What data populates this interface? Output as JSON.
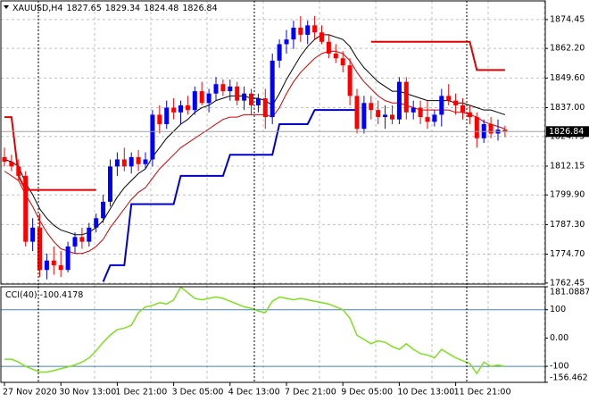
{
  "chart_data": [
    {
      "type": "candlestick",
      "symbol": "XAUUSD,H4",
      "up_color": "#0000ff",
      "down_color": "#ff0000",
      "grid": true,
      "candles": [
        [
          1816,
          1820,
          1812,
          1814
        ],
        [
          1814,
          1817,
          1810,
          1812
        ],
        [
          1812,
          1815,
          1806,
          1808
        ],
        [
          1808,
          1810,
          1778,
          1780
        ],
        [
          1780,
          1790,
          1776,
          1786
        ],
        [
          1786,
          1792,
          1765,
          1768
        ],
        [
          1768,
          1775,
          1764,
          1772
        ],
        [
          1772,
          1778,
          1766,
          1770
        ],
        [
          1770,
          1776,
          1765,
          1768
        ],
        [
          1768,
          1780,
          1767,
          1778
        ],
        [
          1778,
          1784,
          1775,
          1782
        ],
        [
          1782,
          1786,
          1777,
          1780
        ],
        [
          1780,
          1788,
          1778,
          1786
        ],
        [
          1786,
          1792,
          1784,
          1790
        ],
        [
          1790,
          1800,
          1788,
          1797
        ],
        [
          1797,
          1815,
          1795,
          1812
        ],
        [
          1812,
          1818,
          1808,
          1815
        ],
        [
          1815,
          1820,
          1810,
          1812
        ],
        [
          1812,
          1818,
          1809,
          1816
        ],
        [
          1816,
          1819,
          1810,
          1813
        ],
        [
          1813,
          1818,
          1811,
          1815
        ],
        [
          1815,
          1836,
          1812,
          1834
        ],
        [
          1834,
          1838,
          1826,
          1830
        ],
        [
          1830,
          1840,
          1828,
          1837
        ],
        [
          1837,
          1841,
          1832,
          1835
        ],
        [
          1835,
          1840,
          1830,
          1838
        ],
        [
          1838,
          1842,
          1834,
          1836
        ],
        [
          1836,
          1846,
          1834,
          1844
        ],
        [
          1844,
          1848,
          1838,
          1839
        ],
        [
          1839,
          1845,
          1835,
          1843
        ],
        [
          1843,
          1850,
          1840,
          1847
        ],
        [
          1847,
          1849,
          1842,
          1844
        ],
        [
          1844,
          1849,
          1840,
          1846
        ],
        [
          1846,
          1848,
          1838,
          1840
        ],
        [
          1840,
          1846,
          1836,
          1843
        ],
        [
          1843,
          1845,
          1834,
          1838
        ],
        [
          1838,
          1843,
          1835,
          1841
        ],
        [
          1841,
          1845,
          1828,
          1833
        ],
        [
          1833,
          1860,
          1830,
          1857
        ],
        [
          1857,
          1866,
          1854,
          1864
        ],
        [
          1864,
          1870,
          1860,
          1866
        ],
        [
          1866,
          1874,
          1862,
          1871
        ],
        [
          1871,
          1876,
          1865,
          1868
        ],
        [
          1868,
          1874,
          1864,
          1872
        ],
        [
          1872,
          1876,
          1866,
          1869
        ],
        [
          1869,
          1872,
          1864,
          1865
        ],
        [
          1865,
          1868,
          1858,
          1860
        ],
        [
          1860,
          1864,
          1856,
          1858
        ],
        [
          1858,
          1861,
          1852,
          1855
        ],
        [
          1855,
          1858,
          1838,
          1842
        ],
        [
          1842,
          1845,
          1826,
          1828
        ],
        [
          1828,
          1842,
          1826,
          1839
        ],
        [
          1839,
          1842,
          1832,
          1836
        ],
        [
          1836,
          1840,
          1830,
          1833
        ],
        [
          1833,
          1838,
          1828,
          1834
        ],
        [
          1834,
          1838,
          1830,
          1832
        ],
        [
          1832,
          1850,
          1830,
          1848
        ],
        [
          1848,
          1850,
          1832,
          1835
        ],
        [
          1835,
          1840,
          1832,
          1837
        ],
        [
          1837,
          1840,
          1830,
          1833
        ],
        [
          1833,
          1840,
          1828,
          1831
        ],
        [
          1831,
          1836,
          1829,
          1834
        ],
        [
          1834,
          1845,
          1829,
          1842
        ],
        [
          1842,
          1847,
          1838,
          1840
        ],
        [
          1840,
          1843,
          1834,
          1838
        ],
        [
          1838,
          1841,
          1832,
          1835
        ],
        [
          1835,
          1838,
          1830,
          1833
        ],
        [
          1833,
          1835,
          1820,
          1824
        ],
        [
          1824,
          1832,
          1822,
          1830
        ],
        [
          1830,
          1833,
          1824,
          1826
        ],
        [
          1826,
          1832,
          1823,
          1827.65
        ],
        [
          1827.65,
          1829.34,
          1824.48,
          1826.84
        ]
      ],
      "overlays": [
        {
          "color": "#000000",
          "width": 1,
          "values": [
            1815,
            1814,
            1812,
            1805,
            1800,
            1794,
            1790,
            1787,
            1785,
            1784,
            1783,
            1783,
            1784,
            1786,
            1789,
            1794,
            1799,
            1803,
            1806,
            1809,
            1811,
            1816,
            1820,
            1824,
            1827,
            1830,
            1832,
            1835,
            1837,
            1838,
            1840,
            1841,
            1842,
            1842,
            1842,
            1841,
            1841,
            1840,
            1838,
            1843,
            1849,
            1854,
            1859,
            1863,
            1866,
            1868,
            1868,
            1867,
            1866,
            1863,
            1858,
            1854,
            1851,
            1848,
            1846,
            1844,
            1844,
            1843,
            1842,
            1841,
            1840,
            1840,
            1840,
            1840,
            1839,
            1839,
            1838,
            1837,
            1836,
            1836,
            1835,
            1834
          ]
        },
        {
          "color": "#d00000",
          "width": 1,
          "values": [
            1810,
            1808,
            1806,
            1800,
            1795,
            1789,
            1784,
            1780,
            1777,
            1776,
            1775,
            1775,
            1776,
            1778,
            1781,
            1786,
            1790,
            1794,
            1798,
            1801,
            1803,
            1807,
            1811,
            1814,
            1817,
            1820,
            1822,
            1824,
            1826,
            1828,
            1830,
            1832,
            1833,
            1833,
            1834,
            1834,
            1834,
            1834,
            1833,
            1837,
            1843,
            1848,
            1852,
            1855,
            1858,
            1860,
            1861,
            1861,
            1860,
            1857,
            1852,
            1848,
            1845,
            1842,
            1840,
            1839,
            1839,
            1838,
            1837,
            1836,
            1836,
            1836,
            1836,
            1836,
            1835,
            1835,
            1834,
            1833,
            1831,
            1830,
            1829,
            1828
          ]
        },
        {
          "color": "#e00000",
          "width": 2,
          "values": [
            1833,
            1833,
            1808,
            1802,
            1802,
            1802,
            1802,
            1802,
            1802,
            1802,
            1802,
            1802,
            1802,
            1802,
            null,
            null,
            null,
            null,
            null,
            null,
            null,
            null,
            null,
            null,
            null,
            null,
            null,
            null,
            null,
            null,
            null,
            null,
            null,
            null,
            null,
            null,
            null,
            null,
            null,
            null,
            null,
            null,
            null,
            null,
            null,
            null,
            null,
            null,
            null,
            null,
            null,
            null,
            1865,
            1865,
            1865,
            1865,
            1865,
            1865,
            1865,
            1865,
            1865,
            1865,
            1865,
            1865,
            1865,
            1865,
            1865,
            1853,
            1853,
            1853,
            1853,
            1853
          ]
        },
        {
          "color": "#0000cc",
          "width": 2,
          "values": [
            null,
            null,
            null,
            null,
            null,
            null,
            null,
            null,
            null,
            null,
            null,
            null,
            null,
            null,
            1763,
            1770,
            1770,
            1770,
            1796,
            1796,
            1796,
            1796,
            1796,
            1796,
            1796,
            1808,
            1808,
            1808,
            1808,
            1808,
            1808,
            1808,
            1817,
            1817,
            1817,
            1817,
            1817,
            1817,
            1817,
            1830,
            1830,
            1830,
            1830,
            1830,
            1836,
            1836,
            1836,
            1836,
            1836,
            1836,
            1836,
            null,
            null,
            null,
            null,
            null,
            null,
            null,
            null,
            null,
            null,
            null,
            null,
            null,
            null,
            null,
            null,
            null,
            null,
            null,
            null,
            null
          ]
        }
      ],
      "ylim": [
        1762,
        1882.4
      ],
      "yticks": [
        1874.45,
        {
          "value": 1862.2,
          "label": "1862.20"
        },
        {
          "value": 1849.6,
          "label": "1849.60"
        },
        {
          "value": 1837,
          "label": "1837.00"
        },
        1824.75,
        1812.15,
        {
          "value": 1799.9,
          "label": "1799.90"
        },
        {
          "value": 1787.3,
          "label": "1787.30"
        },
        {
          "value": 1774.7,
          "label": "1774.70"
        },
        1762.45
      ],
      "xticks": [
        {
          "value": 0,
          "label": "27 Nov 2020"
        },
        {
          "value": 8,
          "label": "30 Nov 13:00"
        },
        {
          "value": 16,
          "label": "1 Dec 21:00"
        },
        {
          "value": 24,
          "label": "3 Dec 05:00"
        },
        {
          "value": 32,
          "label": "4 Dec 13:00"
        },
        {
          "value": 40,
          "label": "7 Dec 21:00"
        },
        {
          "value": 48,
          "label": "9 Dec 05:00"
        },
        {
          "value": 56,
          "label": "10 Dec 13:00"
        },
        {
          "value": 64,
          "label": "11 Dec 21:00"
        }
      ]
    },
    {
      "type": "line",
      "title": "CCI(40)",
      "color": "#7fe020",
      "level_color": "#4682b4",
      "values": [
        -75,
        -75,
        -85,
        -100,
        -110,
        -120,
        -120,
        -115,
        -108,
        -102,
        -95,
        -85,
        -70,
        -45,
        -15,
        10,
        30,
        35,
        45,
        90,
        110,
        115,
        125,
        120,
        135,
        180,
        160,
        140,
        135,
        140,
        145,
        140,
        130,
        120,
        110,
        105,
        95,
        90,
        130,
        145,
        140,
        135,
        140,
        135,
        130,
        125,
        120,
        110,
        100,
        70,
        10,
        -5,
        -20,
        -10,
        -15,
        -30,
        -40,
        -20,
        -40,
        -55,
        -60,
        -70,
        -40,
        -55,
        -70,
        -80,
        -90,
        -125,
        -85,
        -100,
        -95,
        -100.4178
      ],
      "ylim": [
        -156.462,
        181.0887
      ],
      "yticks": [
        181.0887,
        100,
        {
          "value": 0,
          "label": "0.00"
        },
        -100,
        -156.462
      ],
      "levels": [
        100,
        -100
      ]
    }
  ]
}
